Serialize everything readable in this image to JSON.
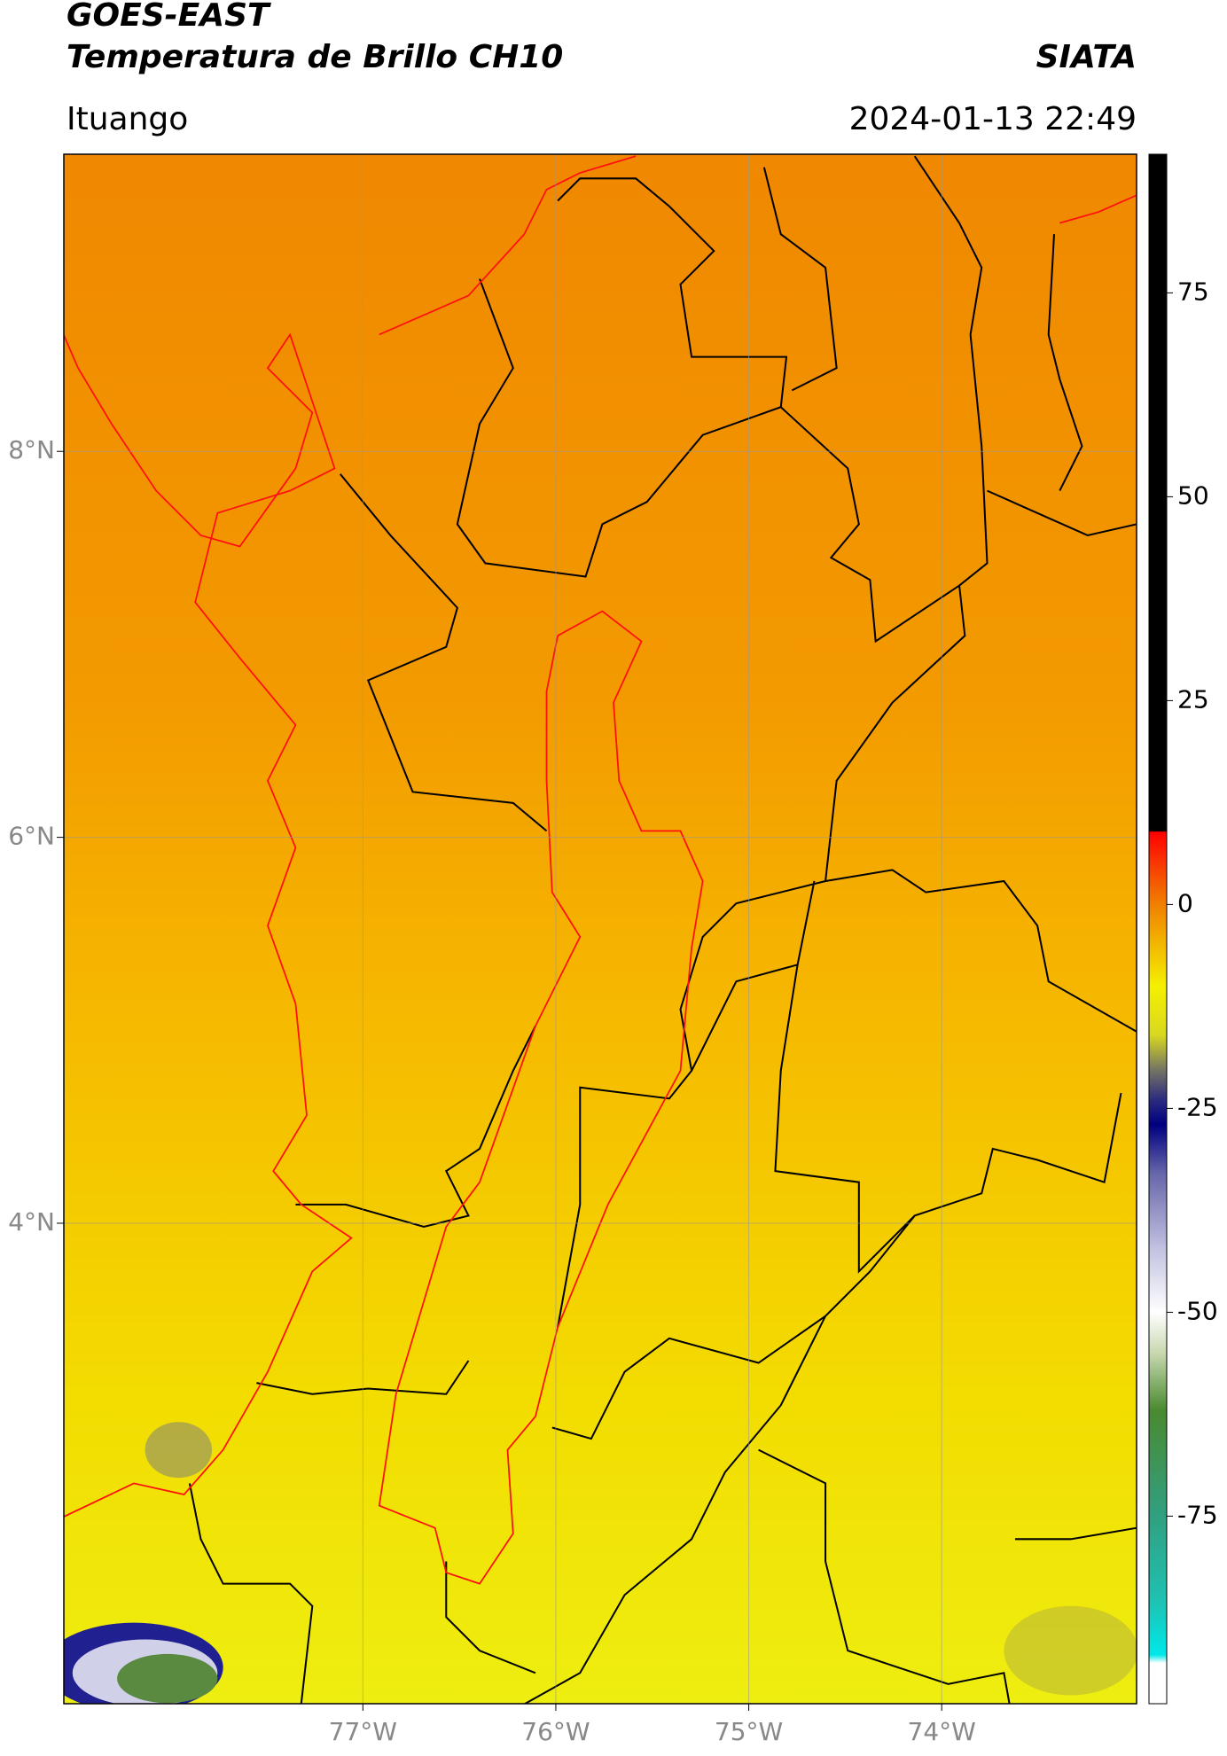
{
  "header": {
    "satellite": "GOES-EAST",
    "product": "Temperatura de Brillo CH10",
    "agency": "SIATA",
    "location": "Ituango",
    "datetime": "2024-01-13 22:49"
  },
  "chart_data": {
    "type": "map",
    "xlim": [
      -78.55,
      -72.99
    ],
    "ylim": [
      1.51,
      9.54
    ],
    "xticks": [
      {
        "value": -77,
        "label": "77°W"
      },
      {
        "value": -76,
        "label": "76°W"
      },
      {
        "value": -75,
        "label": "75°W"
      },
      {
        "value": -74,
        "label": "74°W"
      }
    ],
    "yticks": [
      {
        "value": 4,
        "label": "4°N"
      },
      {
        "value": 6,
        "label": "6°N"
      },
      {
        "value": 8,
        "label": "8°N"
      }
    ],
    "grid": true,
    "colorbar": {
      "lim": [
        -98,
        92
      ],
      "ticks": [
        -75,
        -50,
        -25,
        0,
        25,
        50,
        75
      ],
      "stops": [
        {
          "value": 92,
          "color": "#000000"
        },
        {
          "value": 9,
          "color": "#000000"
        },
        {
          "value": 8.9,
          "color": "#ff0000"
        },
        {
          "value": 0,
          "color": "#f08000"
        },
        {
          "value": -10,
          "color": "#f5f000"
        },
        {
          "value": -16,
          "color": "#d8d820"
        },
        {
          "value": -20,
          "color": "#7a7a60"
        },
        {
          "value": -24,
          "color": "#2a2a80"
        },
        {
          "value": -27,
          "color": "#000080"
        },
        {
          "value": -33,
          "color": "#6666aa"
        },
        {
          "value": -42,
          "color": "#c0c0e0"
        },
        {
          "value": -50,
          "color": "#ffffff"
        },
        {
          "value": -55,
          "color": "#c8d8b0"
        },
        {
          "value": -62,
          "color": "#4a8a30"
        },
        {
          "value": -75,
          "color": "#30a080"
        },
        {
          "value": -85,
          "color": "#20c0b0"
        },
        {
          "value": -92,
          "color": "#00e8e8"
        },
        {
          "value": -93,
          "color": "#ffffff"
        },
        {
          "value": -98,
          "color": "#ffffff"
        }
      ]
    }
  }
}
